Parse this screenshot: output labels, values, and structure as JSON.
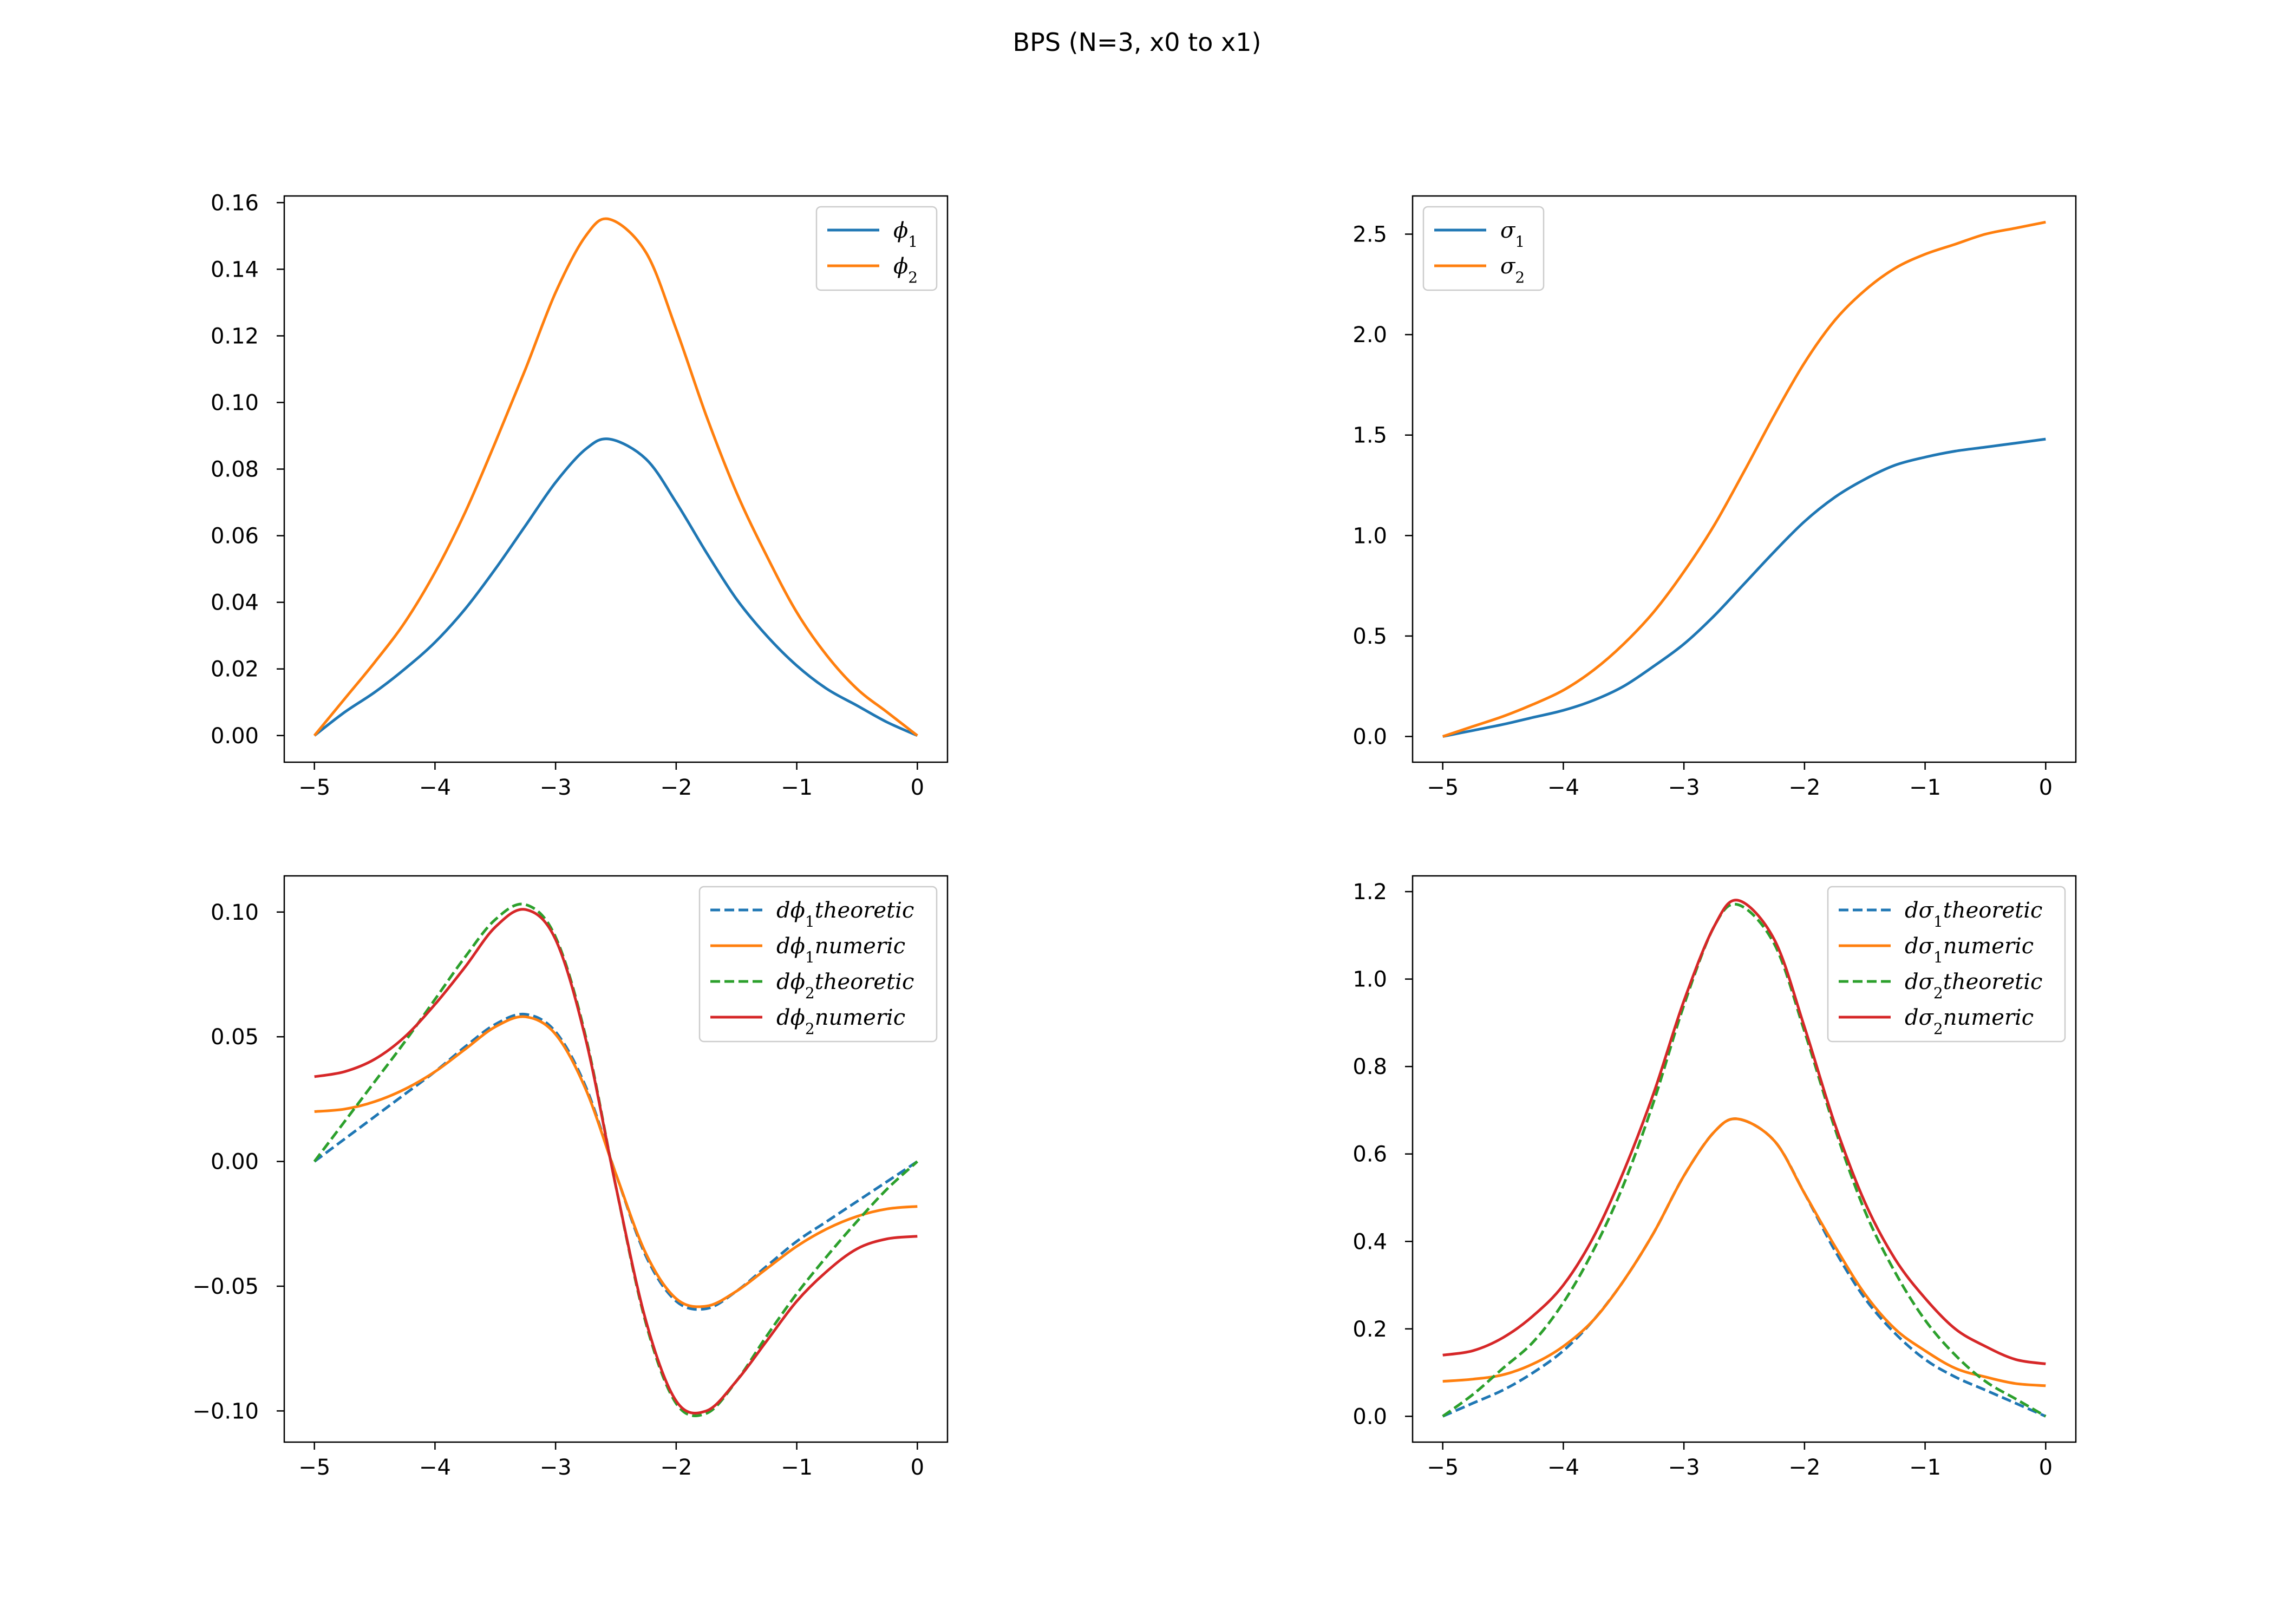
{
  "figure": {
    "suptitle": "BPS (N=3, x0 to x1)"
  },
  "colors": {
    "blue": "#1f77b4",
    "orange": "#ff7f0e",
    "green": "#2ca02c",
    "red": "#d62728"
  },
  "chart_data": [
    {
      "type": "line",
      "position": "top-left",
      "title": "",
      "xlabel": "",
      "ylabel": "",
      "xlim": [
        -5.25,
        0.25
      ],
      "ylim": [
        -0.008,
        0.162
      ],
      "xticks": [
        -5,
        -4,
        -3,
        -2,
        -1,
        0
      ],
      "xtick_labels": [
        "−5",
        "−4",
        "−3",
        "−2",
        "−1",
        "0"
      ],
      "yticks": [
        0.0,
        0.02,
        0.04,
        0.06,
        0.08,
        0.1,
        0.12,
        0.14,
        0.16
      ],
      "ytick_labels": [
        "0.00",
        "0.02",
        "0.04",
        "0.06",
        "0.08",
        "0.10",
        "0.12",
        "0.14",
        "0.16"
      ],
      "grid": false,
      "legend_position": "upper right",
      "series": [
        {
          "name": "ϕ₁",
          "color": "#1f77b4",
          "style": "solid",
          "x": [
            -5,
            -4.75,
            -4.5,
            -4.25,
            -4,
            -3.75,
            -3.5,
            -3.25,
            -3,
            -2.75,
            -2.55,
            -2.25,
            -2,
            -1.75,
            -1.5,
            -1.25,
            -1,
            -0.75,
            -0.5,
            -0.25,
            0
          ],
          "y": [
            0.0,
            0.007,
            0.013,
            0.02,
            0.028,
            0.038,
            0.05,
            0.063,
            0.076,
            0.086,
            0.089,
            0.083,
            0.07,
            0.055,
            0.041,
            0.03,
            0.021,
            0.014,
            0.009,
            0.004,
            0.0
          ]
        },
        {
          "name": "ϕ₂",
          "color": "#ff7f0e",
          "style": "solid",
          "x": [
            -5,
            -4.75,
            -4.5,
            -4.25,
            -4,
            -3.75,
            -3.5,
            -3.25,
            -3,
            -2.75,
            -2.55,
            -2.25,
            -2,
            -1.75,
            -1.5,
            -1.25,
            -1,
            -0.75,
            -0.5,
            -0.25,
            0
          ],
          "y": [
            0.0,
            0.011,
            0.022,
            0.034,
            0.049,
            0.067,
            0.088,
            0.11,
            0.133,
            0.15,
            0.155,
            0.145,
            0.122,
            0.096,
            0.073,
            0.054,
            0.037,
            0.024,
            0.014,
            0.007,
            0.0
          ]
        }
      ]
    },
    {
      "type": "line",
      "position": "top-right",
      "title": "",
      "xlabel": "",
      "ylabel": "",
      "xlim": [
        -5.25,
        0.25
      ],
      "ylim": [
        -0.128,
        2.69
      ],
      "xticks": [
        -5,
        -4,
        -3,
        -2,
        -1,
        0
      ],
      "xtick_labels": [
        "−5",
        "−4",
        "−3",
        "−2",
        "−1",
        "0"
      ],
      "yticks": [
        0.0,
        0.5,
        1.0,
        1.5,
        2.0,
        2.5
      ],
      "ytick_labels": [
        "0.0",
        "0.5",
        "1.0",
        "1.5",
        "2.0",
        "2.5"
      ],
      "grid": false,
      "legend_position": "upper left",
      "series": [
        {
          "name": "σ₁",
          "color": "#1f77b4",
          "style": "solid",
          "x": [
            -5,
            -4.75,
            -4.5,
            -4.25,
            -4,
            -3.75,
            -3.5,
            -3.25,
            -3,
            -2.75,
            -2.5,
            -2.25,
            -2,
            -1.75,
            -1.5,
            -1.25,
            -1,
            -0.75,
            -0.5,
            -0.25,
            0
          ],
          "y": [
            0.0,
            0.03,
            0.06,
            0.095,
            0.13,
            0.18,
            0.25,
            0.35,
            0.46,
            0.6,
            0.76,
            0.92,
            1.07,
            1.19,
            1.28,
            1.35,
            1.39,
            1.42,
            1.44,
            1.46,
            1.48
          ]
        },
        {
          "name": "σ₂",
          "color": "#ff7f0e",
          "style": "solid",
          "x": [
            -5,
            -4.75,
            -4.5,
            -4.25,
            -4,
            -3.75,
            -3.5,
            -3.25,
            -3,
            -2.75,
            -2.5,
            -2.25,
            -2,
            -1.75,
            -1.5,
            -1.25,
            -1,
            -0.75,
            -0.5,
            -0.25,
            0
          ],
          "y": [
            0.0,
            0.05,
            0.1,
            0.16,
            0.23,
            0.33,
            0.46,
            0.62,
            0.82,
            1.05,
            1.32,
            1.6,
            1.86,
            2.07,
            2.22,
            2.33,
            2.4,
            2.45,
            2.5,
            2.53,
            2.56
          ]
        }
      ]
    },
    {
      "type": "line",
      "position": "bottom-left",
      "title": "",
      "xlabel": "",
      "ylabel": "",
      "xlim": [
        -5.25,
        0.25
      ],
      "ylim": [
        -0.1125,
        0.1145
      ],
      "xticks": [
        -5,
        -4,
        -3,
        -2,
        -1,
        0
      ],
      "xtick_labels": [
        "−5",
        "−4",
        "−3",
        "−2",
        "−1",
        "0"
      ],
      "yticks": [
        -0.1,
        -0.05,
        0.0,
        0.05,
        0.1
      ],
      "ytick_labels": [
        "−0.10",
        "−0.05",
        "0.00",
        "0.05",
        "0.10"
      ],
      "grid": false,
      "legend_position": "upper right",
      "series": [
        {
          "name": "dϕ₁theoretic",
          "color": "#1f77b4",
          "style": "dashed",
          "x": [
            -5,
            -4.75,
            -4.5,
            -4.25,
            -4,
            -3.75,
            -3.5,
            -3.25,
            -3,
            -2.75,
            -2.5,
            -2.25,
            -2,
            -1.75,
            -1.5,
            -1.25,
            -1,
            -0.75,
            -0.5,
            -0.25,
            0
          ],
          "y": [
            0.0,
            0.009,
            0.018,
            0.027,
            0.036,
            0.046,
            0.055,
            0.059,
            0.052,
            0.03,
            -0.005,
            -0.038,
            -0.056,
            -0.059,
            -0.052,
            -0.042,
            -0.032,
            -0.024,
            -0.016,
            -0.008,
            0.0
          ]
        },
        {
          "name": "dϕ₁numeric",
          "color": "#ff7f0e",
          "style": "solid",
          "x": [
            -5,
            -4.75,
            -4.5,
            -4.25,
            -4,
            -3.75,
            -3.5,
            -3.25,
            -3,
            -2.75,
            -2.5,
            -2.25,
            -2,
            -1.75,
            -1.5,
            -1.25,
            -1,
            -0.75,
            -0.5,
            -0.25,
            0
          ],
          "y": [
            0.02,
            0.021,
            0.024,
            0.029,
            0.036,
            0.045,
            0.054,
            0.058,
            0.051,
            0.029,
            -0.005,
            -0.037,
            -0.055,
            -0.058,
            -0.052,
            -0.043,
            -0.034,
            -0.027,
            -0.022,
            -0.019,
            -0.018
          ]
        },
        {
          "name": "dϕ₂theoretic",
          "color": "#2ca02c",
          "style": "dashed",
          "x": [
            -5,
            -4.75,
            -4.5,
            -4.25,
            -4,
            -3.75,
            -3.5,
            -3.25,
            -3,
            -2.75,
            -2.5,
            -2.25,
            -2,
            -1.75,
            -1.5,
            -1.25,
            -1,
            -0.75,
            -0.5,
            -0.25,
            0
          ],
          "y": [
            0.0,
            0.016,
            0.032,
            0.048,
            0.065,
            0.082,
            0.097,
            0.103,
            0.09,
            0.05,
            -0.01,
            -0.065,
            -0.097,
            -0.101,
            -0.088,
            -0.07,
            -0.053,
            -0.038,
            -0.024,
            -0.011,
            0.0
          ]
        },
        {
          "name": "dϕ₂numeric",
          "color": "#d62728",
          "style": "solid",
          "x": [
            -5,
            -4.75,
            -4.5,
            -4.25,
            -4,
            -3.75,
            -3.5,
            -3.25,
            -3,
            -2.75,
            -2.5,
            -2.25,
            -2,
            -1.75,
            -1.5,
            -1.25,
            -1,
            -0.75,
            -0.5,
            -0.25,
            0
          ],
          "y": [
            0.034,
            0.036,
            0.041,
            0.05,
            0.063,
            0.078,
            0.094,
            0.101,
            0.089,
            0.049,
            -0.01,
            -0.064,
            -0.096,
            -0.1,
            -0.088,
            -0.072,
            -0.056,
            -0.044,
            -0.035,
            -0.031,
            -0.03
          ]
        }
      ]
    },
    {
      "type": "line",
      "position": "bottom-right",
      "title": "",
      "xlabel": "",
      "ylabel": "",
      "xlim": [
        -5.25,
        0.25
      ],
      "ylim": [
        -0.059,
        1.236
      ],
      "xticks": [
        -5,
        -4,
        -3,
        -2,
        -1,
        0
      ],
      "xtick_labels": [
        "−5",
        "−4",
        "−3",
        "−2",
        "−1",
        "0"
      ],
      "yticks": [
        0.0,
        0.2,
        0.4,
        0.6,
        0.8,
        1.0,
        1.2
      ],
      "ytick_labels": [
        "0.0",
        "0.2",
        "0.4",
        "0.6",
        "0.8",
        "1.0",
        "1.2"
      ],
      "grid": false,
      "legend_position": "upper right",
      "series": [
        {
          "name": "dσ₁theoretic",
          "color": "#1f77b4",
          "style": "dashed",
          "x": [
            -5,
            -4.75,
            -4.5,
            -4.25,
            -4,
            -3.75,
            -3.5,
            -3.25,
            -3,
            -2.75,
            -2.55,
            -2.25,
            -2,
            -1.75,
            -1.5,
            -1.25,
            -1,
            -0.75,
            -0.5,
            -0.25,
            0
          ],
          "y": [
            0.0,
            0.03,
            0.06,
            0.1,
            0.15,
            0.22,
            0.31,
            0.42,
            0.55,
            0.65,
            0.68,
            0.63,
            0.51,
            0.38,
            0.27,
            0.19,
            0.13,
            0.09,
            0.06,
            0.03,
            0.0
          ]
        },
        {
          "name": "dσ₁numeric",
          "color": "#ff7f0e",
          "style": "solid",
          "x": [
            -5,
            -4.75,
            -4.5,
            -4.25,
            -4,
            -3.75,
            -3.5,
            -3.25,
            -3,
            -2.75,
            -2.55,
            -2.25,
            -2,
            -1.75,
            -1.5,
            -1.25,
            -1,
            -0.75,
            -0.5,
            -0.25,
            0
          ],
          "y": [
            0.08,
            0.085,
            0.095,
            0.12,
            0.16,
            0.22,
            0.31,
            0.42,
            0.55,
            0.65,
            0.68,
            0.63,
            0.51,
            0.39,
            0.28,
            0.2,
            0.15,
            0.11,
            0.09,
            0.075,
            0.07
          ]
        },
        {
          "name": "dσ₂theoretic",
          "color": "#2ca02c",
          "style": "dashed",
          "x": [
            -5,
            -4.75,
            -4.5,
            -4.25,
            -4,
            -3.75,
            -3.5,
            -3.25,
            -3,
            -2.75,
            -2.55,
            -2.25,
            -2,
            -1.75,
            -1.5,
            -1.25,
            -1,
            -0.75,
            -0.5,
            -0.25,
            0
          ],
          "y": [
            0.0,
            0.05,
            0.11,
            0.17,
            0.26,
            0.38,
            0.53,
            0.72,
            0.94,
            1.12,
            1.17,
            1.08,
            0.88,
            0.66,
            0.47,
            0.33,
            0.22,
            0.14,
            0.08,
            0.04,
            0.0
          ]
        },
        {
          "name": "dσ₂numeric",
          "color": "#d62728",
          "style": "solid",
          "x": [
            -5,
            -4.75,
            -4.5,
            -4.25,
            -4,
            -3.75,
            -3.5,
            -3.25,
            -3,
            -2.75,
            -2.55,
            -2.25,
            -2,
            -1.75,
            -1.5,
            -1.25,
            -1,
            -0.75,
            -0.5,
            -0.25,
            0
          ],
          "y": [
            0.14,
            0.15,
            0.18,
            0.23,
            0.3,
            0.41,
            0.56,
            0.74,
            0.95,
            1.12,
            1.18,
            1.09,
            0.89,
            0.67,
            0.49,
            0.36,
            0.27,
            0.2,
            0.16,
            0.13,
            0.12
          ]
        }
      ]
    }
  ]
}
